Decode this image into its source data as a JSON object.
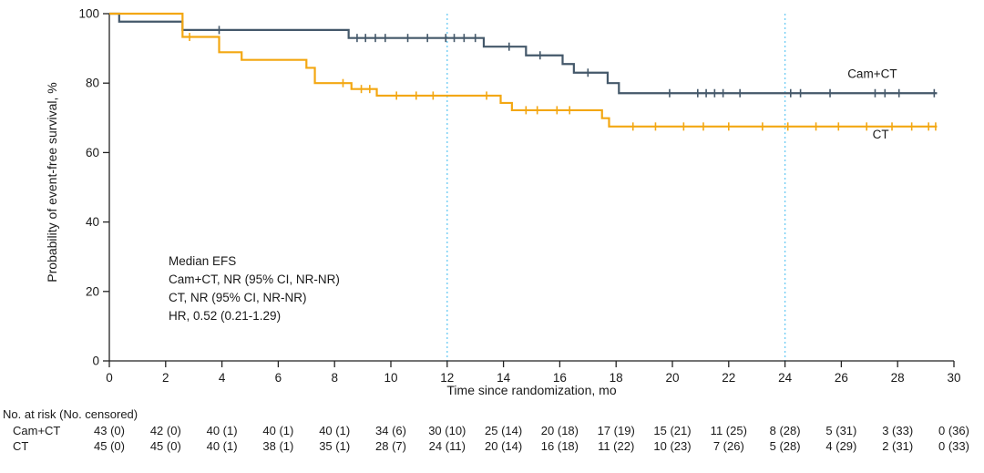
{
  "chart_data": {
    "type": "line",
    "subtype": "kaplan-meier-step",
    "title": "",
    "xlabel": "Time since randomization, mo",
    "ylabel": "Probability of event-free survival, %",
    "xlim": [
      0,
      30
    ],
    "ylim": [
      0,
      100
    ],
    "x_ticks": [
      0,
      2,
      4,
      6,
      8,
      10,
      12,
      14,
      16,
      18,
      20,
      22,
      24,
      26,
      28,
      30
    ],
    "y_ticks": [
      0,
      20,
      40,
      60,
      80,
      100
    ],
    "grid": false,
    "legend_position": "curve-end-labels",
    "axis_color": "#222222",
    "reference_lines": {
      "x": [
        12,
        24
      ],
      "color": "#72cdf4",
      "style": "dotted"
    },
    "series": [
      {
        "name": "Cam+CT",
        "color": "#44586a",
        "steps": [
          [
            0,
            100
          ],
          [
            0.35,
            97.7
          ],
          [
            2.6,
            95.3
          ],
          [
            8.5,
            93.0
          ],
          [
            13.3,
            90.5
          ],
          [
            14.8,
            88.0
          ],
          [
            16.1,
            85.5
          ],
          [
            16.5,
            83.0
          ],
          [
            17.7,
            80.0
          ],
          [
            18.1,
            77.1
          ],
          [
            29.4,
            77.1
          ]
        ],
        "censor_marks": [
          [
            3.9,
            95.3
          ],
          [
            8.8,
            93
          ],
          [
            9.1,
            93
          ],
          [
            9.45,
            93
          ],
          [
            9.8,
            93
          ],
          [
            10.6,
            93
          ],
          [
            11.3,
            93
          ],
          [
            11.95,
            93
          ],
          [
            12.25,
            93
          ],
          [
            12.6,
            93
          ],
          [
            13.0,
            93
          ],
          [
            14.2,
            90.5
          ],
          [
            15.3,
            88
          ],
          [
            17.0,
            83
          ],
          [
            19.9,
            77.1
          ],
          [
            20.9,
            77.1
          ],
          [
            21.2,
            77.1
          ],
          [
            21.5,
            77.1
          ],
          [
            21.8,
            77.1
          ],
          [
            22.4,
            77.1
          ],
          [
            24.2,
            77.1
          ],
          [
            24.55,
            77.1
          ],
          [
            25.6,
            77.1
          ],
          [
            27.2,
            77.1
          ],
          [
            27.55,
            77.1
          ],
          [
            28.05,
            77.1
          ],
          [
            29.3,
            77.1
          ]
        ],
        "label_pos": {
          "x": 27.1,
          "y": 81.5
        }
      },
      {
        "name": "CT",
        "color": "#f3a712",
        "steps": [
          [
            0,
            100
          ],
          [
            2.6,
            93.3
          ],
          [
            3.9,
            88.9
          ],
          [
            4.7,
            86.7
          ],
          [
            7.0,
            84.4
          ],
          [
            7.3,
            80.0
          ],
          [
            8.6,
            78.3
          ],
          [
            9.5,
            76.4
          ],
          [
            13.9,
            74.3
          ],
          [
            14.3,
            72.2
          ],
          [
            17.5,
            69.9
          ],
          [
            17.75,
            67.5
          ],
          [
            29.4,
            67.5
          ]
        ],
        "censor_marks": [
          [
            2.85,
            93.3
          ],
          [
            8.3,
            80
          ],
          [
            8.95,
            78.3
          ],
          [
            9.25,
            78.3
          ],
          [
            10.2,
            76.4
          ],
          [
            10.9,
            76.4
          ],
          [
            11.5,
            76.4
          ],
          [
            13.4,
            76.4
          ],
          [
            14.8,
            72.2
          ],
          [
            15.2,
            72.2
          ],
          [
            15.9,
            72.2
          ],
          [
            16.35,
            72.2
          ],
          [
            18.6,
            67.5
          ],
          [
            19.4,
            67.5
          ],
          [
            20.4,
            67.5
          ],
          [
            21.1,
            67.5
          ],
          [
            22.0,
            67.5
          ],
          [
            23.2,
            67.5
          ],
          [
            24.1,
            67.5
          ],
          [
            25.1,
            67.5
          ],
          [
            25.9,
            67.5
          ],
          [
            26.9,
            67.5
          ],
          [
            27.8,
            67.5
          ],
          [
            28.5,
            67.5
          ],
          [
            29.1,
            67.5
          ],
          [
            29.35,
            67.5
          ]
        ],
        "label_pos": {
          "x": 27.4,
          "y": 64.0
        }
      }
    ],
    "annotation": {
      "lines": [
        "Median EFS",
        "Cam+CT, NR (95% CI, NR-NR)",
        "CT, NR (95% CI, NR-NR)",
        "HR, 0.52 (0.21-1.29)"
      ]
    },
    "risk_table": {
      "header": "No. at risk (No. censored)",
      "times": [
        0,
        2,
        4,
        6,
        8,
        10,
        12,
        14,
        16,
        18,
        20,
        22,
        24,
        26,
        28,
        30
      ],
      "rows": [
        {
          "name": "Cam+CT",
          "values": [
            "43 (0)",
            "42 (0)",
            "40 (1)",
            "40 (1)",
            "40 (1)",
            "34 (6)",
            "30 (10)",
            "25 (14)",
            "20 (18)",
            "17 (19)",
            "15 (21)",
            "11 (25)",
            "8 (28)",
            "5 (31)",
            "3 (33)",
            "0 (36)"
          ]
        },
        {
          "name": "CT",
          "values": [
            "45 (0)",
            "45 (0)",
            "40 (1)",
            "38 (1)",
            "35 (1)",
            "28 (7)",
            "24 (11)",
            "20 (14)",
            "16 (18)",
            "11 (22)",
            "10 (23)",
            "7 (26)",
            "5 (28)",
            "4 (29)",
            "2 (31)",
            "0 (33)"
          ]
        }
      ]
    }
  }
}
